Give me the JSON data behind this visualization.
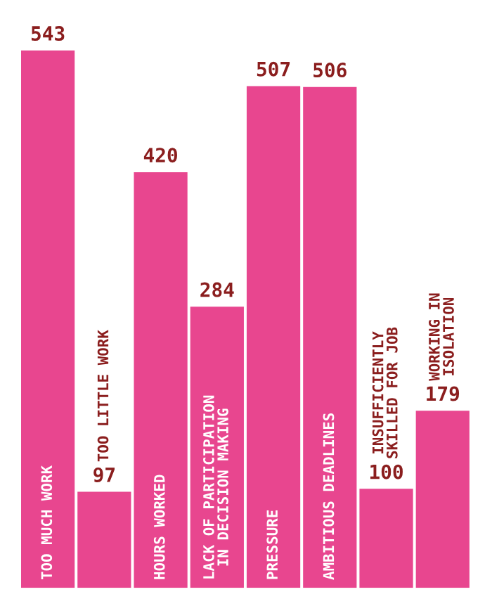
{
  "chart_data": {
    "type": "bar",
    "categories": [
      "TOO MUCH WORK",
      "TOO LITTLE WORK",
      "HOURS WORKED",
      "LACK OF PARTICIPATION\nIN DECISION MAKING",
      "PRESSURE",
      "AMBITIOUS DEADLINES",
      "INSUFFICIENTLY\nSKILLED FOR JOB",
      "WORKING IN\nISOLATION"
    ],
    "series": [
      {
        "color": "#e8468f",
        "values": [
          543,
          97,
          420,
          284,
          507,
          506,
          100,
          179
        ]
      }
    ],
    "data_labels": true,
    "legend": false
  }
}
